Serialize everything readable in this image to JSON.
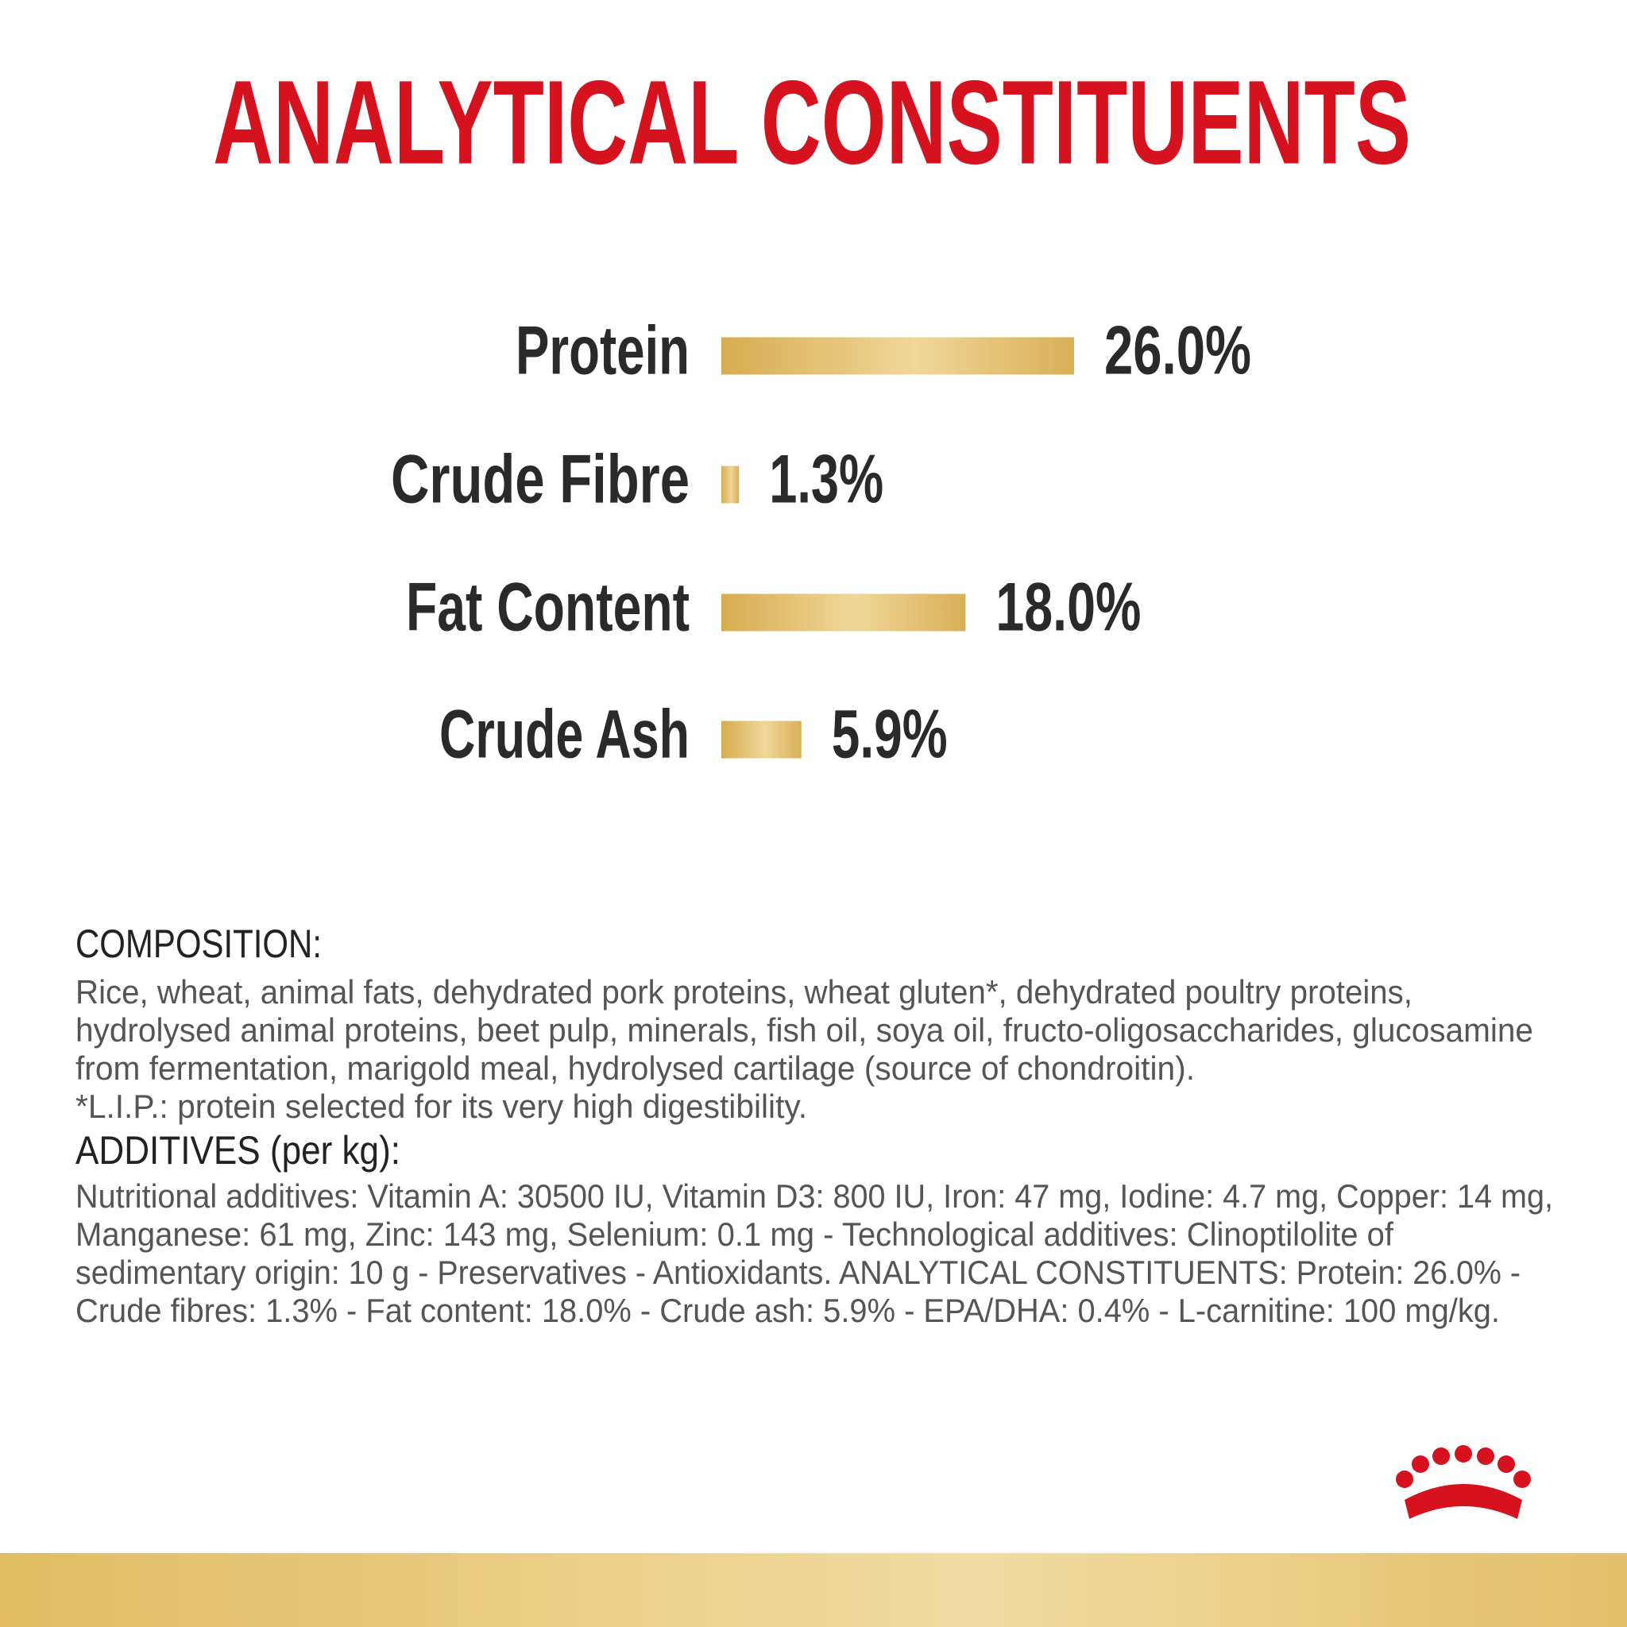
{
  "chart_data": {
    "type": "bar",
    "orientation": "horizontal",
    "title": "ANALYTICAL CONSTITUENTS",
    "categories": [
      "Protein",
      "Crude Fibre",
      "Fat Content",
      "Crude Ash"
    ],
    "values": [
      26.0,
      1.3,
      18.0,
      5.9
    ],
    "value_labels": [
      "26.0%",
      "1.3%",
      "18.0%",
      "5.9%"
    ],
    "color": "#dcb560"
  },
  "composition": {
    "heading": "COMPOSITION:",
    "lines": [
      "Rice, wheat, animal fats, dehydrated pork proteins, wheat gluten*, dehydrated poultry proteins,",
      "hydrolysed animal proteins, beet pulp, minerals, fish oil, soya oil, fructo-oligosaccharides, glucosamine",
      "from fermentation, marigold meal, hydrolysed cartilage (source of chondroitin).",
      "*L.I.P.: protein selected for its very high digestibility."
    ]
  },
  "additives": {
    "heading": "ADDITIVES (per kg):",
    "lines": [
      "Nutritional additives: Vitamin A: 30500 IU, Vitamin D3: 800 IU, Iron: 47 mg, Iodine: 4.7 mg, Copper: 14 mg,",
      "Manganese: 61 mg, Zinc: 143 mg, Selenium: 0.1 mg - Technological additives: Clinoptilolite of",
      "sedimentary origin: 10 g - Preservatives - Antioxidants. ANALYTICAL CONSTITUENTS: Protein: 26.0% -",
      "Crude fibres: 1.3% - Fat content: 18.0% - Crude ash: 5.9% - EPA/DHA: 0.4% - L-carnitine: 100 mg/kg."
    ]
  }
}
